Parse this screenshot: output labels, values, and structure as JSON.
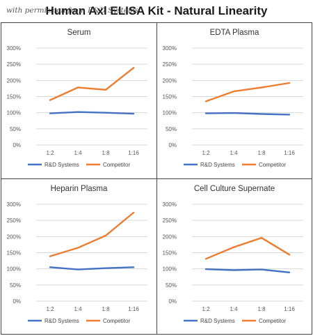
{
  "page": {
    "title": "Human Axl ELISA Kit - Natural Linearity",
    "watermark": "with permission from R&D Systems"
  },
  "colors": {
    "rd": "#4472C4",
    "competitor": "#ED7D31",
    "grid": "#D9D9D9"
  },
  "chart_data": [
    {
      "type": "line",
      "title": "Serum",
      "categories": [
        "1:2",
        "1:4",
        "1:8",
        "1:16"
      ],
      "yticks": [
        "0%",
        "50%",
        "100%",
        "150%",
        "200%",
        "250%",
        "300%"
      ],
      "ylim": [
        0,
        300
      ],
      "grid": true,
      "legend": "bottom",
      "series": [
        {
          "name": "R&D Systems",
          "values": [
            98,
            102,
            100,
            97
          ]
        },
        {
          "name": "Competitor",
          "values": [
            139,
            178,
            171,
            239
          ]
        }
      ]
    },
    {
      "type": "line",
      "title": "EDTA Plasma",
      "categories": [
        "1:2",
        "1:4",
        "1:8",
        "1:16"
      ],
      "yticks": [
        "0%",
        "50%",
        "100%",
        "150%",
        "200%",
        "250%",
        "300%"
      ],
      "ylim": [
        0,
        300
      ],
      "grid": true,
      "legend": "bottom",
      "series": [
        {
          "name": "R&D Systems",
          "values": [
            98,
            99,
            96,
            94
          ]
        },
        {
          "name": "Competitor",
          "values": [
            135,
            166,
            178,
            192
          ]
        }
      ]
    },
    {
      "type": "line",
      "title": "Heparin Plasma",
      "categories": [
        "1:2",
        "1:4",
        "1:8",
        "1:16"
      ],
      "yticks": [
        "0%",
        "50%",
        "100%",
        "150%",
        "200%",
        "250%",
        "300%"
      ],
      "ylim": [
        0,
        300
      ],
      "grid": true,
      "legend": "bottom",
      "series": [
        {
          "name": "R&D Systems",
          "values": [
            105,
            98,
            102,
            105
          ]
        },
        {
          "name": "Competitor",
          "values": [
            139,
            165,
            203,
            274
          ]
        }
      ]
    },
    {
      "type": "line",
      "title": "Cell Culture Supernate",
      "categories": [
        "1:2",
        "1:4",
        "1:8",
        "1:16"
      ],
      "yticks": [
        "0%",
        "50%",
        "100%",
        "150%",
        "200%",
        "250%",
        "300%"
      ],
      "ylim": [
        0,
        300
      ],
      "grid": true,
      "legend": "bottom",
      "series": [
        {
          "name": "R&D Systems",
          "values": [
            99,
            96,
            98,
            89
          ]
        },
        {
          "name": "Competitor",
          "values": [
            131,
            167,
            196,
            144
          ]
        }
      ]
    }
  ]
}
